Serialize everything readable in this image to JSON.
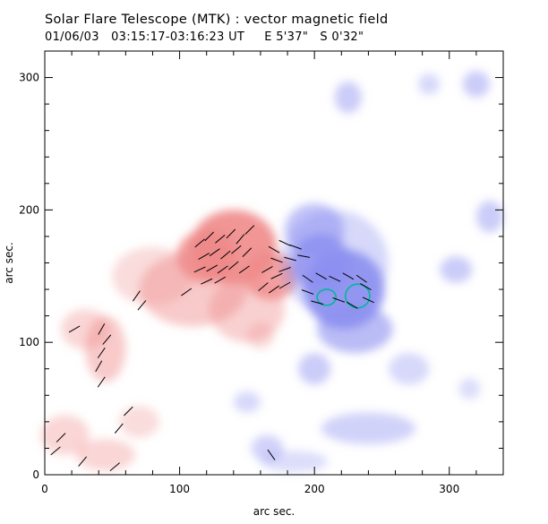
{
  "header": {
    "title": "Solar Flare Telescope (MTK) : vector magnetic field",
    "subtitle": "01/06/03   03:15:17-03:16:23 UT     E 5'37\"   S 0'32\""
  },
  "chart_data": {
    "type": "heatmap",
    "xlabel": "arc sec.",
    "ylabel": "arc sec.",
    "xlim": [
      0,
      340
    ],
    "ylim": [
      0,
      320
    ],
    "xticks": [
      0,
      100,
      200,
      300
    ],
    "yticks": [
      0,
      100,
      200,
      300
    ],
    "colors": {
      "positive": "#f08a8a",
      "negative": "#8c8ff0",
      "contour": "#00b89a",
      "vector": "#000000"
    },
    "positive_regions": [
      {
        "x": 140,
        "y": 172,
        "rx": 32,
        "ry": 28,
        "a": 0.9
      },
      {
        "x": 120,
        "y": 165,
        "rx": 22,
        "ry": 20,
        "a": 0.85
      },
      {
        "x": 168,
        "y": 150,
        "rx": 20,
        "ry": 18,
        "a": 0.8
      },
      {
        "x": 110,
        "y": 140,
        "rx": 40,
        "ry": 28,
        "a": 0.45
      },
      {
        "x": 150,
        "y": 125,
        "rx": 28,
        "ry": 25,
        "a": 0.4
      },
      {
        "x": 80,
        "y": 150,
        "rx": 30,
        "ry": 22,
        "a": 0.3
      },
      {
        "x": 45,
        "y": 95,
        "rx": 15,
        "ry": 25,
        "a": 0.45
      },
      {
        "x": 30,
        "y": 110,
        "rx": 18,
        "ry": 15,
        "a": 0.35
      },
      {
        "x": 15,
        "y": 30,
        "rx": 18,
        "ry": 15,
        "a": 0.35
      },
      {
        "x": 45,
        "y": 15,
        "rx": 22,
        "ry": 12,
        "a": 0.35
      },
      {
        "x": 70,
        "y": 40,
        "rx": 15,
        "ry": 12,
        "a": 0.3
      },
      {
        "x": 160,
        "y": 105,
        "rx": 10,
        "ry": 10,
        "a": 0.3
      }
    ],
    "negative_regions": [
      {
        "x": 222,
        "y": 140,
        "rx": 30,
        "ry": 30,
        "a": 0.9
      },
      {
        "x": 205,
        "y": 160,
        "rx": 22,
        "ry": 22,
        "a": 0.8
      },
      {
        "x": 230,
        "y": 110,
        "rx": 28,
        "ry": 18,
        "a": 0.6
      },
      {
        "x": 200,
        "y": 185,
        "rx": 22,
        "ry": 20,
        "a": 0.55
      },
      {
        "x": 215,
        "y": 160,
        "rx": 40,
        "ry": 40,
        "a": 0.35
      },
      {
        "x": 305,
        "y": 155,
        "rx": 12,
        "ry": 10,
        "a": 0.45
      },
      {
        "x": 330,
        "y": 195,
        "rx": 10,
        "ry": 12,
        "a": 0.45
      },
      {
        "x": 320,
        "y": 295,
        "rx": 10,
        "ry": 10,
        "a": 0.45
      },
      {
        "x": 225,
        "y": 285,
        "rx": 10,
        "ry": 12,
        "a": 0.45
      },
      {
        "x": 285,
        "y": 295,
        "rx": 8,
        "ry": 8,
        "a": 0.35
      },
      {
        "x": 270,
        "y": 80,
        "rx": 15,
        "ry": 12,
        "a": 0.35
      },
      {
        "x": 200,
        "y": 80,
        "rx": 12,
        "ry": 12,
        "a": 0.45
      },
      {
        "x": 240,
        "y": 35,
        "rx": 35,
        "ry": 12,
        "a": 0.4
      },
      {
        "x": 165,
        "y": 20,
        "rx": 12,
        "ry": 10,
        "a": 0.4
      },
      {
        "x": 150,
        "y": 55,
        "rx": 10,
        "ry": 8,
        "a": 0.35
      },
      {
        "x": 185,
        "y": 10,
        "rx": 25,
        "ry": 8,
        "a": 0.3
      },
      {
        "x": 315,
        "y": 65,
        "rx": 8,
        "ry": 8,
        "a": 0.3
      }
    ],
    "contours": [
      {
        "x": 209,
        "y": 134,
        "rx": 7,
        "ry": 6
      },
      {
        "x": 232,
        "y": 135,
        "rx": 9,
        "ry": 9
      }
    ],
    "vectors": [
      {
        "x": 115,
        "y": 175,
        "a": 40
      },
      {
        "x": 122,
        "y": 180,
        "a": 45
      },
      {
        "x": 130,
        "y": 178,
        "a": 40
      },
      {
        "x": 138,
        "y": 182,
        "a": 45
      },
      {
        "x": 145,
        "y": 178,
        "a": 50
      },
      {
        "x": 152,
        "y": 185,
        "a": 45
      },
      {
        "x": 118,
        "y": 165,
        "a": 30
      },
      {
        "x": 126,
        "y": 168,
        "a": 35
      },
      {
        "x": 134,
        "y": 166,
        "a": 40
      },
      {
        "x": 142,
        "y": 170,
        "a": 40
      },
      {
        "x": 150,
        "y": 168,
        "a": 45
      },
      {
        "x": 115,
        "y": 155,
        "a": 25
      },
      {
        "x": 124,
        "y": 156,
        "a": 30
      },
      {
        "x": 132,
        "y": 155,
        "a": 35
      },
      {
        "x": 140,
        "y": 158,
        "a": 40
      },
      {
        "x": 148,
        "y": 155,
        "a": 35
      },
      {
        "x": 120,
        "y": 146,
        "a": 25
      },
      {
        "x": 130,
        "y": 147,
        "a": 30
      },
      {
        "x": 165,
        "y": 155,
        "a": 30
      },
      {
        "x": 172,
        "y": 150,
        "a": 25
      },
      {
        "x": 178,
        "y": 155,
        "a": 20
      },
      {
        "x": 170,
        "y": 140,
        "a": 35
      },
      {
        "x": 178,
        "y": 143,
        "a": 30
      },
      {
        "x": 162,
        "y": 142,
        "a": 40
      },
      {
        "x": 170,
        "y": 170,
        "a": -30
      },
      {
        "x": 178,
        "y": 175,
        "a": -25
      },
      {
        "x": 186,
        "y": 172,
        "a": -20
      },
      {
        "x": 172,
        "y": 162,
        "a": -20
      },
      {
        "x": 182,
        "y": 163,
        "a": -15
      },
      {
        "x": 192,
        "y": 165,
        "a": -10
      },
      {
        "x": 195,
        "y": 148,
        "a": -35
      },
      {
        "x": 205,
        "y": 150,
        "a": -30
      },
      {
        "x": 215,
        "y": 148,
        "a": -25
      },
      {
        "x": 225,
        "y": 150,
        "a": -30
      },
      {
        "x": 235,
        "y": 148,
        "a": -35
      },
      {
        "x": 195,
        "y": 138,
        "a": -20
      },
      {
        "x": 202,
        "y": 130,
        "a": -15
      },
      {
        "x": 218,
        "y": 132,
        "a": -20
      },
      {
        "x": 228,
        "y": 128,
        "a": -30
      },
      {
        "x": 240,
        "y": 132,
        "a": -25
      },
      {
        "x": 238,
        "y": 142,
        "a": -30
      },
      {
        "x": 68,
        "y": 135,
        "a": 55
      },
      {
        "x": 72,
        "y": 128,
        "a": 50
      },
      {
        "x": 105,
        "y": 138,
        "a": 35
      },
      {
        "x": 42,
        "y": 110,
        "a": 60
      },
      {
        "x": 46,
        "y": 102,
        "a": 50
      },
      {
        "x": 42,
        "y": 92,
        "a": 55
      },
      {
        "x": 40,
        "y": 82,
        "a": 60
      },
      {
        "x": 42,
        "y": 70,
        "a": 55
      },
      {
        "x": 22,
        "y": 110,
        "a": 30
      },
      {
        "x": 62,
        "y": 48,
        "a": 45
      },
      {
        "x": 55,
        "y": 35,
        "a": 50
      },
      {
        "x": 12,
        "y": 28,
        "a": 45
      },
      {
        "x": 8,
        "y": 18,
        "a": 40
      },
      {
        "x": 28,
        "y": 10,
        "a": 50
      },
      {
        "x": 52,
        "y": 6,
        "a": 40
      },
      {
        "x": 168,
        "y": 15,
        "a": -55
      }
    ]
  }
}
